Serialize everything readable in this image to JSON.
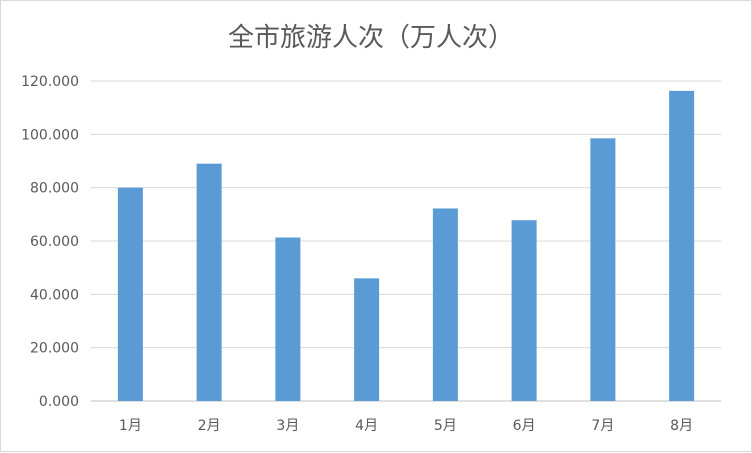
{
  "chart_data": {
    "type": "bar",
    "title": "全市旅游人次（万人次）",
    "categories": [
      "1月",
      "2月",
      "3月",
      "4月",
      "5月",
      "6月",
      "7月",
      "8月"
    ],
    "values": [
      80.0,
      89.0,
      61.3,
      46.0,
      72.2,
      67.8,
      98.5,
      116.3
    ],
    "ylim": [
      0,
      120
    ],
    "yticks": [
      0,
      20,
      40,
      60,
      80,
      100,
      120
    ],
    "ytick_labels": [
      "0.000",
      "20.000",
      "40.000",
      "60.000",
      "80.000",
      "100.000",
      "120.000"
    ],
    "xlabel": "",
    "ylabel": "",
    "grid": true,
    "legend": "none",
    "bar_color": "#5b9bd5"
  }
}
